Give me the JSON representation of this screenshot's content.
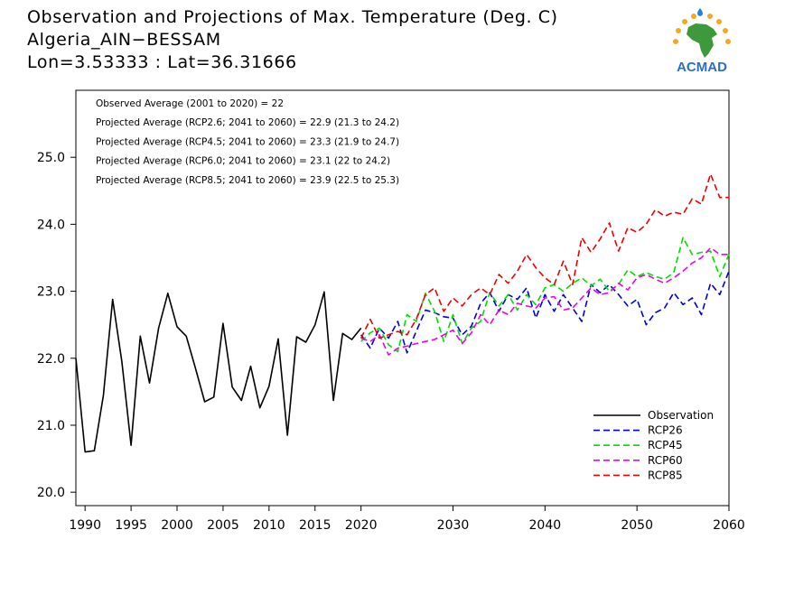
{
  "title": {
    "line1": "Observation and Projections of Max. Temperature (Deg. C)",
    "line2": "Algeria_AIN−BESSAM",
    "line3": "Lon=3.53333 : Lat=36.31666"
  },
  "logo": {
    "text": "ACMAD",
    "icon": "africa-map-logo"
  },
  "stats": [
    "Observed Average (2001 to 2020) = 22",
    "Projected Average (RCP2.6; 2041 to 2060) = 22.9 (21.3 to 24.2)",
    "Projected Average (RCP4.5; 2041 to 2060) = 23.3 (21.9 to 24.7)",
    "Projected Average (RCP6.0; 2041 to 2060) = 23.1 (22 to 24.2)",
    "Projected Average (RCP8.5; 2041 to 2060) = 23.9 (22.5 to 25.3)"
  ],
  "chart_data": {
    "type": "line",
    "title": "Observation and Projections of Max. Temperature (Deg. C)",
    "xlabel": "",
    "ylabel": "",
    "xlim": [
      1989,
      2060
    ],
    "ylim": [
      19.8,
      26.0
    ],
    "xticks": [
      1990,
      1995,
      2000,
      2005,
      2010,
      2015,
      2020,
      2030,
      2040,
      2050,
      2060
    ],
    "yticks": [
      20.0,
      21.0,
      22.0,
      23.0,
      24.0,
      25.0
    ],
    "ytick_labels": [
      "20.0",
      "21.0",
      "22.0",
      "23.0",
      "24.0",
      "25.0"
    ],
    "grid": false,
    "legend_position": "bottom-right",
    "series": [
      {
        "name": "Observation",
        "color": "#000000",
        "dash": "solid",
        "x": [
          1989,
          1990,
          1991,
          1992,
          1993,
          1994,
          1995,
          1996,
          1997,
          1998,
          1999,
          2000,
          2001,
          2002,
          2003,
          2004,
          2005,
          2006,
          2007,
          2008,
          2009,
          2010,
          2011,
          2012,
          2013,
          2014,
          2015,
          2016,
          2017,
          2018,
          2019,
          2020
        ],
        "y": [
          22.0,
          20.6,
          20.62,
          21.45,
          22.88,
          21.95,
          20.7,
          22.33,
          21.63,
          22.45,
          22.97,
          22.47,
          22.33,
          21.85,
          21.35,
          21.42,
          22.52,
          21.57,
          21.37,
          21.88,
          21.26,
          21.58,
          22.29,
          20.85,
          22.32,
          22.24,
          22.5,
          22.99,
          21.37,
          22.37,
          22.28,
          22.45
        ]
      },
      {
        "name": "RCP26",
        "color": "#0000dd",
        "dash": "dashed",
        "x": [
          2020,
          2021,
          2022,
          2023,
          2024,
          2025,
          2026,
          2027,
          2028,
          2029,
          2030,
          2031,
          2032,
          2033,
          2034,
          2035,
          2036,
          2037,
          2038,
          2039,
          2040,
          2041,
          2042,
          2043,
          2044,
          2045,
          2046,
          2047,
          2048,
          2049,
          2050,
          2051,
          2052,
          2053,
          2054,
          2055,
          2056,
          2057,
          2058,
          2059,
          2060
        ],
        "y": [
          22.35,
          22.15,
          22.45,
          22.3,
          22.55,
          22.08,
          22.4,
          22.72,
          22.68,
          22.62,
          22.6,
          22.35,
          22.48,
          22.82,
          22.98,
          22.7,
          22.95,
          22.88,
          23.05,
          22.6,
          22.95,
          22.7,
          22.95,
          22.75,
          22.55,
          23.1,
          22.98,
          23.1,
          22.95,
          22.78,
          22.88,
          22.5,
          22.68,
          22.75,
          22.98,
          22.8,
          22.9,
          22.65,
          23.12,
          22.95,
          23.3
        ]
      },
      {
        "name": "RCP45",
        "color": "#00dd00",
        "dash": "dashed",
        "x": [
          2020,
          2021,
          2022,
          2023,
          2024,
          2025,
          2026,
          2027,
          2028,
          2029,
          2030,
          2031,
          2032,
          2033,
          2034,
          2035,
          2036,
          2037,
          2038,
          2039,
          2040,
          2041,
          2042,
          2043,
          2044,
          2045,
          2046,
          2047,
          2048,
          2049,
          2050,
          2051,
          2052,
          2053,
          2054,
          2055,
          2056,
          2057,
          2058,
          2059,
          2060
        ],
        "y": [
          22.25,
          22.38,
          22.45,
          22.2,
          22.1,
          22.65,
          22.55,
          22.97,
          22.7,
          22.25,
          22.65,
          22.22,
          22.45,
          22.55,
          22.98,
          22.78,
          22.95,
          22.72,
          22.95,
          22.8,
          23.05,
          23.1,
          23.0,
          23.12,
          23.2,
          23.08,
          23.18,
          23.0,
          23.1,
          23.32,
          23.22,
          23.28,
          23.22,
          23.18,
          23.28,
          23.8,
          23.55,
          23.58,
          23.6,
          23.22,
          23.55
        ]
      },
      {
        "name": "RCP60",
        "color": "#ee00ee",
        "dash": "dashed",
        "x": [
          2020,
          2021,
          2022,
          2023,
          2024,
          2025,
          2026,
          2027,
          2028,
          2029,
          2030,
          2031,
          2032,
          2033,
          2034,
          2035,
          2036,
          2037,
          2038,
          2039,
          2040,
          2041,
          2042,
          2043,
          2044,
          2045,
          2046,
          2047,
          2048,
          2049,
          2050,
          2051,
          2052,
          2053,
          2054,
          2055,
          2056,
          2057,
          2058,
          2059,
          2060
        ],
        "y": [
          22.3,
          22.25,
          22.35,
          22.05,
          22.15,
          22.18,
          22.22,
          22.25,
          22.28,
          22.35,
          22.42,
          22.22,
          22.38,
          22.65,
          22.5,
          22.72,
          22.65,
          22.82,
          22.78,
          22.75,
          22.9,
          22.92,
          22.72,
          22.75,
          22.9,
          23.05,
          22.95,
          22.98,
          23.12,
          23.02,
          23.2,
          23.25,
          23.18,
          23.12,
          23.2,
          23.3,
          23.42,
          23.5,
          23.65,
          23.55,
          23.55
        ]
      },
      {
        "name": "RCP85",
        "color": "#ee0000",
        "dash": "dashed",
        "x": [
          2020,
          2021,
          2022,
          2023,
          2024,
          2025,
          2026,
          2027,
          2028,
          2029,
          2030,
          2031,
          2032,
          2033,
          2034,
          2035,
          2036,
          2037,
          2038,
          2039,
          2040,
          2041,
          2042,
          2043,
          2044,
          2045,
          2046,
          2047,
          2048,
          2049,
          2050,
          2051,
          2052,
          2053,
          2054,
          2055,
          2056,
          2057,
          2058,
          2059,
          2060
        ],
        "y": [
          22.3,
          22.58,
          22.3,
          22.35,
          22.4,
          22.35,
          22.58,
          22.95,
          23.05,
          22.7,
          22.9,
          22.78,
          22.95,
          23.05,
          22.95,
          23.25,
          23.12,
          23.3,
          23.55,
          23.35,
          23.2,
          23.1,
          23.45,
          23.1,
          23.8,
          23.58,
          23.78,
          24.02,
          23.6,
          23.95,
          23.88,
          24.0,
          24.22,
          24.12,
          24.18,
          24.15,
          24.38,
          24.3,
          24.75,
          24.4,
          24.4
        ]
      }
    ]
  }
}
